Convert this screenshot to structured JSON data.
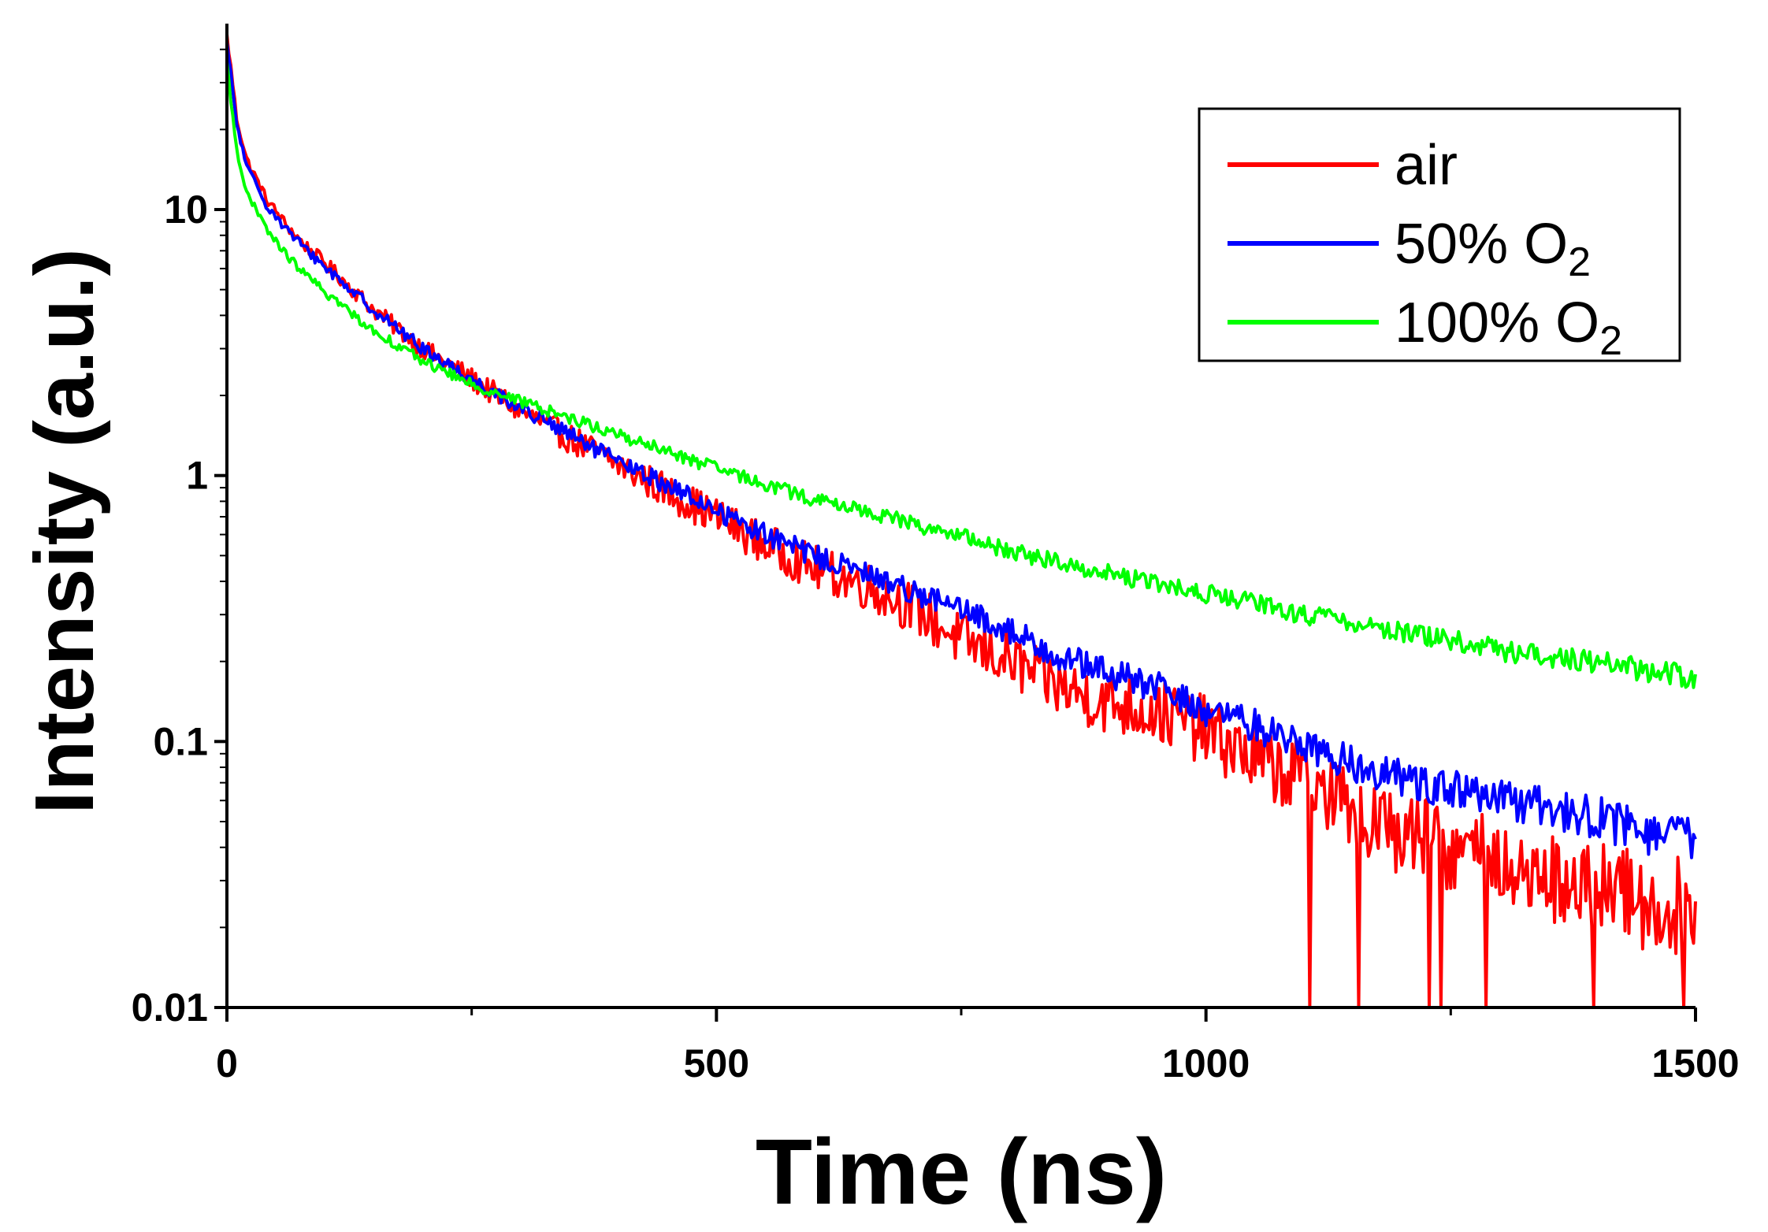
{
  "chart_data": {
    "type": "line",
    "title": "",
    "xlabel": "Time (ns)",
    "ylabel": "Intensity (a.u.)",
    "xlim": [
      0,
      1500
    ],
    "ylim": [
      0.01,
      50
    ],
    "yscale": "log",
    "x_ticks": [
      0,
      500,
      1000,
      1500
    ],
    "x_minor_ticks": [
      250,
      750,
      1250
    ],
    "y_ticks": [
      {
        "value": 0.01,
        "label": "0.01"
      },
      {
        "value": 0.1,
        "label": "0.1"
      },
      {
        "value": 1,
        "label": "1"
      },
      {
        "value": 10,
        "label": "10"
      }
    ],
    "grid": false,
    "legend_position": "top-right",
    "series": [
      {
        "name": "air",
        "label": "air",
        "subscript": "",
        "color": "#ff0000",
        "noise": 0.35,
        "x": [
          0,
          5,
          10,
          20,
          40,
          60,
          80,
          100,
          150,
          200,
          250,
          300,
          350,
          400,
          450,
          500,
          550,
          600,
          650,
          700,
          750,
          800,
          850,
          900,
          950,
          1000,
          1050,
          1100,
          1150,
          1200,
          1250,
          1300,
          1350,
          1400,
          1450,
          1500
        ],
        "y": [
          45,
          32,
          22,
          15.5,
          11,
          8.8,
          7.3,
          6.3,
          4.2,
          3.0,
          2.3,
          1.75,
          1.38,
          1.1,
          0.87,
          0.7,
          0.55,
          0.45,
          0.39,
          0.32,
          0.24,
          0.2,
          0.16,
          0.14,
          0.13,
          0.11,
          0.085,
          0.072,
          0.055,
          0.045,
          0.04,
          0.035,
          0.03,
          0.028,
          0.025,
          0.024
        ]
      },
      {
        "name": "50% O2",
        "label": "50% O",
        "subscript": "2",
        "color": "#0000ff",
        "noise": 0.14,
        "x": [
          0,
          5,
          10,
          20,
          40,
          60,
          80,
          100,
          150,
          200,
          250,
          300,
          350,
          400,
          450,
          500,
          550,
          600,
          650,
          700,
          750,
          800,
          850,
          900,
          950,
          1000,
          1050,
          1100,
          1150,
          1200,
          1250,
          1300,
          1350,
          1400,
          1450,
          1500
        ],
        "y": [
          42,
          30,
          21,
          14.5,
          10.5,
          8.5,
          7.1,
          6.1,
          4.2,
          3.0,
          2.3,
          1.8,
          1.42,
          1.12,
          0.92,
          0.74,
          0.6,
          0.5,
          0.43,
          0.37,
          0.31,
          0.26,
          0.21,
          0.18,
          0.16,
          0.13,
          0.115,
          0.098,
          0.082,
          0.073,
          0.066,
          0.06,
          0.056,
          0.052,
          0.045,
          0.043
        ]
      },
      {
        "name": "100% O2",
        "label": "100% O",
        "subscript": "2",
        "color": "#00ff00",
        "noise": 0.06,
        "x": [
          0,
          5,
          10,
          20,
          40,
          60,
          80,
          100,
          150,
          200,
          250,
          300,
          350,
          400,
          450,
          500,
          550,
          600,
          650,
          700,
          750,
          800,
          850,
          900,
          950,
          1000,
          1050,
          1100,
          1150,
          1200,
          1250,
          1300,
          1350,
          1400,
          1450,
          1500
        ],
        "y": [
          35,
          24,
          17,
          11.5,
          8.5,
          6.8,
          5.7,
          4.9,
          3.5,
          2.7,
          2.2,
          1.9,
          1.65,
          1.42,
          1.23,
          1.06,
          0.93,
          0.81,
          0.74,
          0.66,
          0.59,
          0.52,
          0.47,
          0.43,
          0.39,
          0.36,
          0.33,
          0.3,
          0.28,
          0.26,
          0.24,
          0.22,
          0.21,
          0.2,
          0.185,
          0.175
        ]
      }
    ]
  }
}
